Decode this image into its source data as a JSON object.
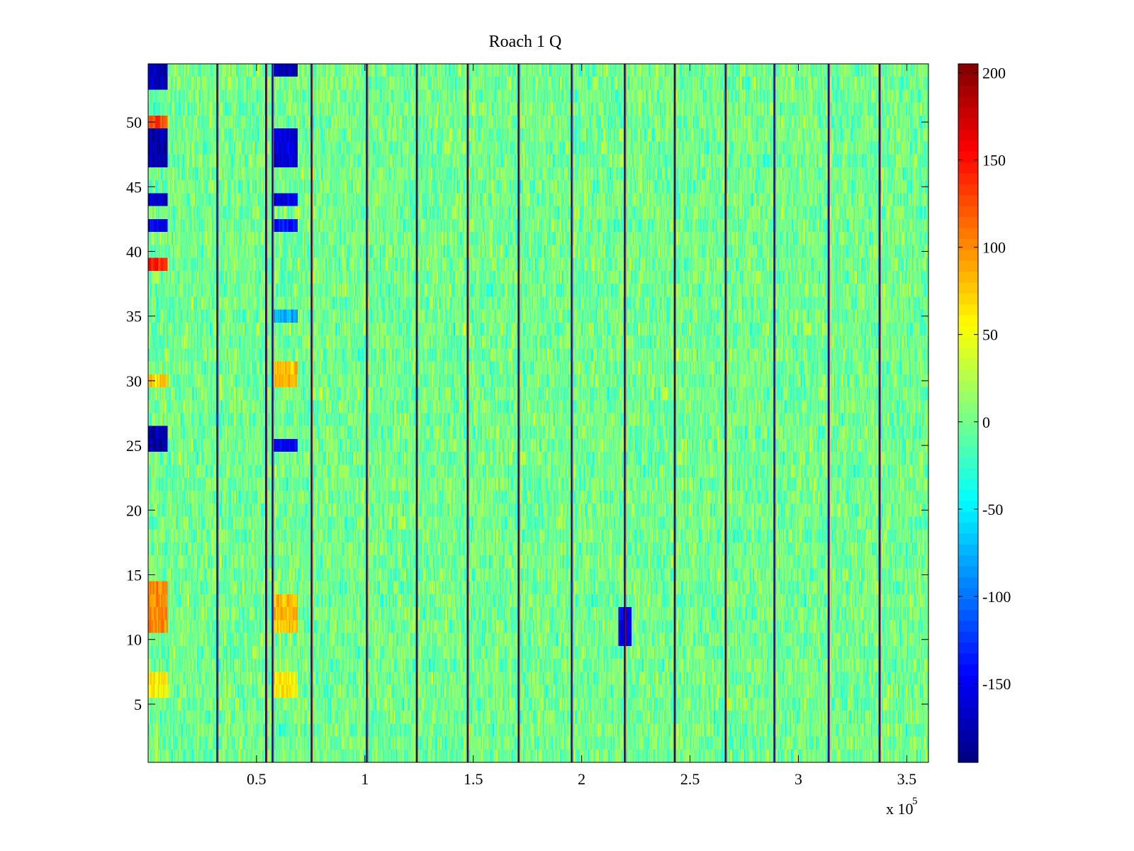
{
  "chart_data": {
    "type": "heatmap",
    "title": "Roach 1 Q",
    "xlabel": "",
    "ylabel": "",
    "colormap": "jet",
    "x_exponent_label": "x 10",
    "x_exponent_power": "5",
    "xlim": [
      0,
      3.6
    ],
    "ylim": [
      0.5,
      54.5
    ],
    "clim": [
      -195,
      205
    ],
    "rows": 54,
    "xticks": [
      0.5,
      1,
      1.5,
      2,
      2.5,
      3,
      3.5
    ],
    "xtick_labels": [
      "0.5",
      "1",
      "1.5",
      "2",
      "2.5",
      "3",
      "3.5"
    ],
    "yticks": [
      5,
      10,
      15,
      20,
      25,
      30,
      35,
      40,
      45,
      50
    ],
    "ytick_labels": [
      "5",
      "10",
      "15",
      "20",
      "25",
      "30",
      "35",
      "40",
      "45",
      "50"
    ],
    "colorbar_ticks": [
      -150,
      -100,
      -50,
      0,
      50,
      100,
      150,
      200
    ],
    "colorbar_labels": [
      "-150",
      "-100",
      "-50",
      "0",
      "50",
      "100",
      "150",
      "200"
    ],
    "typical_value_range": [
      -40,
      40
    ],
    "boundary_columns_x": [
      0.32,
      0.545,
      0.575,
      0.755,
      1.01,
      1.24,
      1.475,
      1.71,
      1.955,
      2.2,
      2.43,
      2.665,
      2.89,
      3.14,
      3.375
    ],
    "boundary_values": [
      -190,
      190
    ],
    "anomaly_regions": [
      {
        "x": [
          0,
          0.09
        ],
        "rows": [
          54,
          53
        ],
        "value": -170
      },
      {
        "x": [
          0,
          0.09
        ],
        "rows": [
          49,
          47
        ],
        "value": -180
      },
      {
        "x": [
          0,
          0.09
        ],
        "rows": [
          44,
          44
        ],
        "value": -170
      },
      {
        "x": [
          0,
          0.09
        ],
        "rows": [
          42,
          42
        ],
        "value": -150
      },
      {
        "x": [
          0,
          0.09
        ],
        "rows": [
          25,
          26
        ],
        "value": -180
      },
      {
        "x": [
          0,
          0.09
        ],
        "rows": [
          50,
          50
        ],
        "value": 130
      },
      {
        "x": [
          0,
          0.09
        ],
        "rows": [
          39,
          39
        ],
        "value": 140
      },
      {
        "x": [
          0,
          0.09
        ],
        "rows": [
          30,
          30
        ],
        "value": 70
      },
      {
        "x": [
          0,
          0.09
        ],
        "rows": [
          11,
          14
        ],
        "value": 100
      },
      {
        "x": [
          0,
          0.09
        ],
        "rows": [
          6,
          7
        ],
        "value": 60
      },
      {
        "x": [
          0.58,
          0.69
        ],
        "rows": [
          54,
          54
        ],
        "value": -170
      },
      {
        "x": [
          0.58,
          0.69
        ],
        "rows": [
          47,
          49
        ],
        "value": -160
      },
      {
        "x": [
          0.58,
          0.69
        ],
        "rows": [
          44,
          44
        ],
        "value": -160
      },
      {
        "x": [
          0.58,
          0.69
        ],
        "rows": [
          42,
          42
        ],
        "value": -140
      },
      {
        "x": [
          0.58,
          0.69
        ],
        "rows": [
          25,
          25
        ],
        "value": -150
      },
      {
        "x": [
          0.58,
          0.69
        ],
        "rows": [
          35,
          35
        ],
        "value": -80
      },
      {
        "x": [
          0.58,
          0.69
        ],
        "rows": [
          30,
          31
        ],
        "value": 80
      },
      {
        "x": [
          0.58,
          0.69
        ],
        "rows": [
          11,
          13
        ],
        "value": 80
      },
      {
        "x": [
          0.58,
          0.69
        ],
        "rows": [
          6,
          7
        ],
        "value": 60
      },
      {
        "x": [
          2.17,
          2.23
        ],
        "rows": [
          10,
          12
        ],
        "value": -150
      }
    ]
  }
}
